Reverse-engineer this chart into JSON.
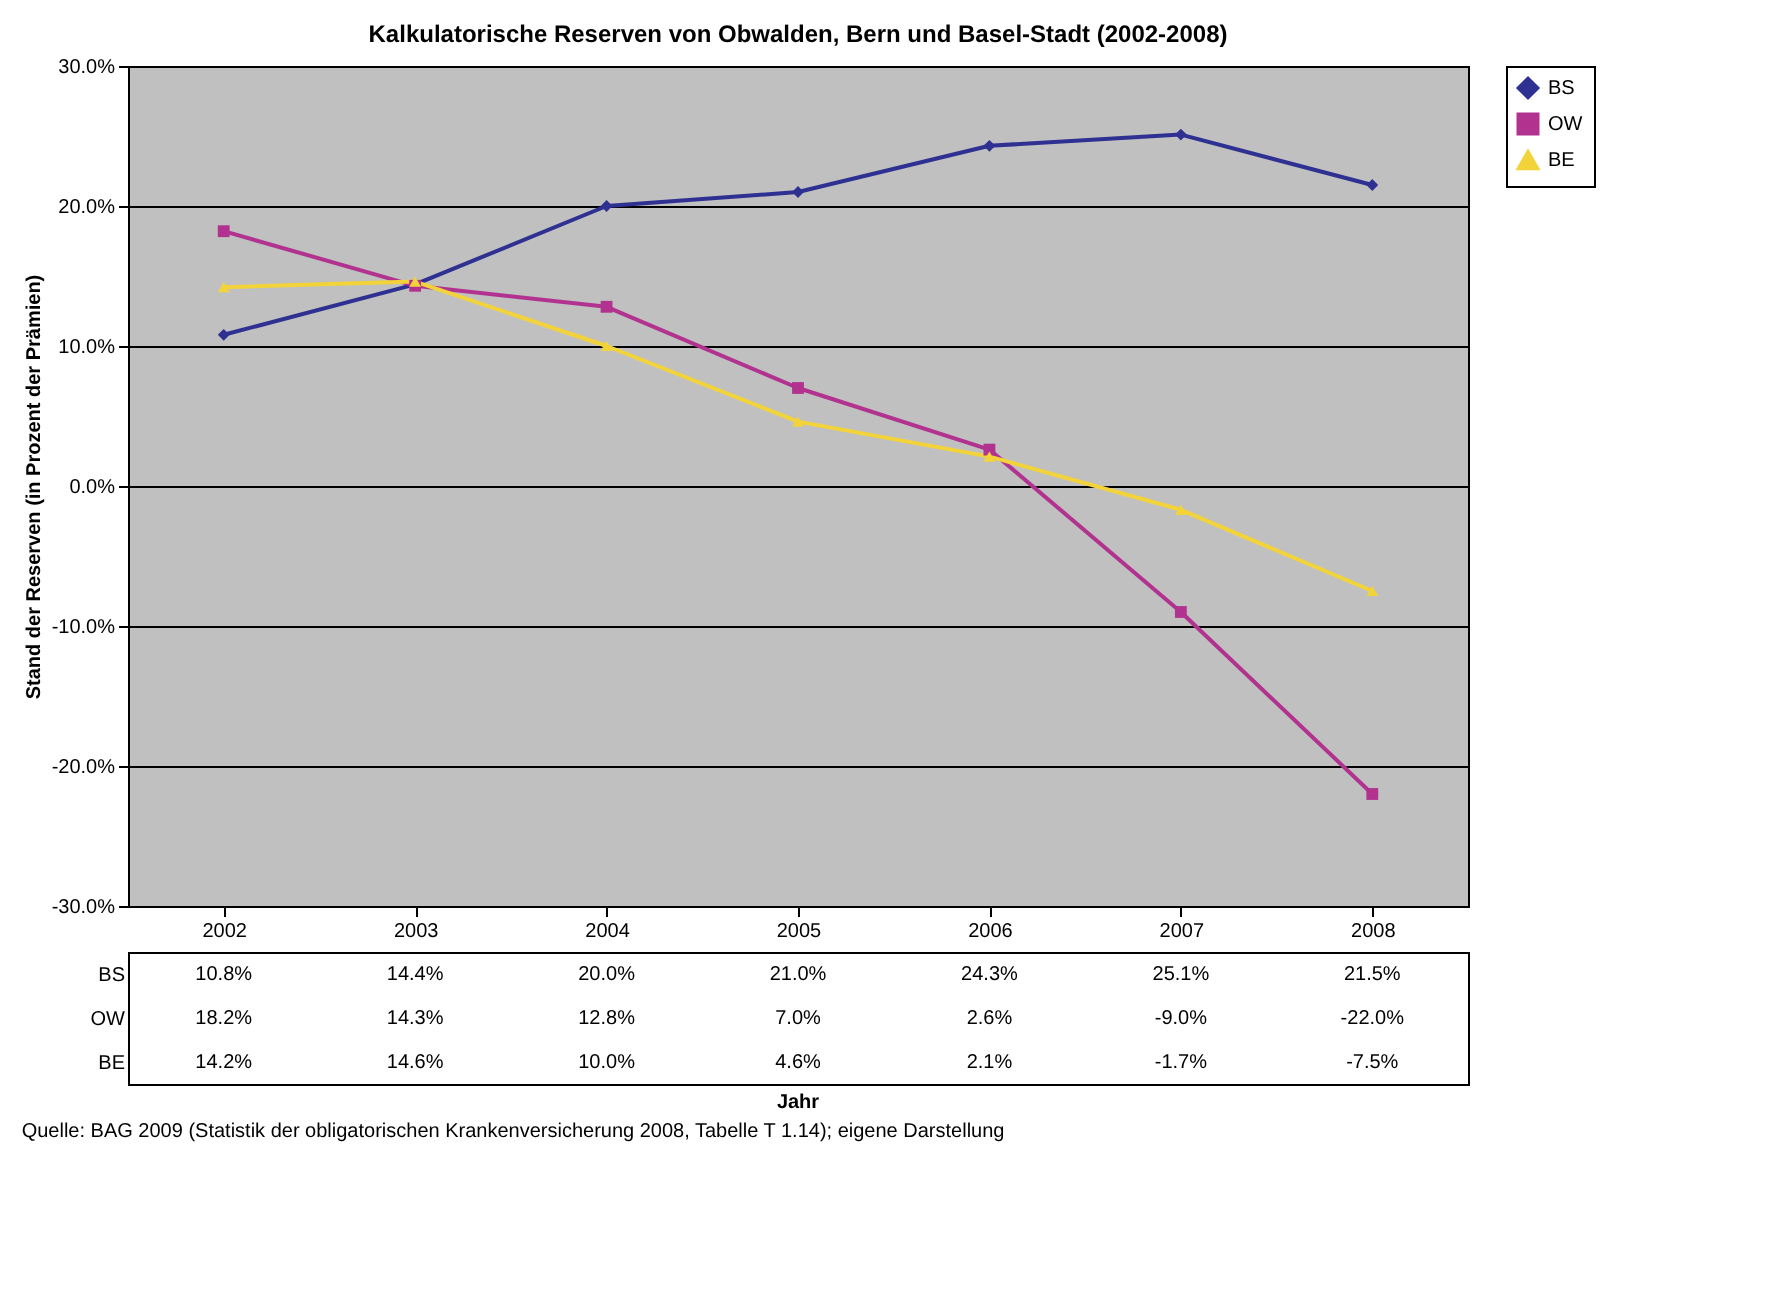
{
  "chart_data": {
    "type": "line",
    "title": "Kalkulatorische Reserven von Obwalden, Bern und Basel-Stadt (2002-2008)",
    "ylabel": "Stand der Reserven (in Prozent der Prämien)",
    "categories": [
      "2002",
      "2003",
      "2004",
      "2005",
      "2006",
      "2007",
      "2008"
    ],
    "series": [
      {
        "name": "BS",
        "color": "#2e3192",
        "marker": "diamond",
        "values": [
          10.8,
          14.4,
          20.0,
          21.0,
          24.3,
          25.1,
          21.5
        ],
        "value_labels": [
          "10.8%",
          "14.4%",
          "20.0%",
          "21.0%",
          "24.3%",
          "25.1%",
          "21.5%"
        ]
      },
      {
        "name": "OW",
        "color": "#b2338f",
        "marker": "square",
        "values": [
          18.2,
          14.3,
          12.8,
          7.0,
          2.6,
          -9.0,
          -22.0
        ],
        "value_labels": [
          "18.2%",
          "14.3%",
          "12.8%",
          "7.0%",
          "2.6%",
          "-9.0%",
          "-22.0%"
        ]
      },
      {
        "name": "BE",
        "color": "#f2d43a",
        "marker": "triangle",
        "values": [
          14.2,
          14.6,
          10.0,
          4.6,
          2.1,
          -1.7,
          -7.5
        ],
        "value_labels": [
          "14.2%",
          "14.6%",
          "10.0%",
          "4.6%",
          "2.1%",
          "-1.7%",
          "-7.5%"
        ]
      }
    ],
    "ylim": [
      -30,
      30
    ],
    "yticks": [
      {
        "value": -30,
        "label": "-30.0%"
      },
      {
        "value": -20,
        "label": "-20.0%"
      },
      {
        "value": -10,
        "label": "-10.0%"
      },
      {
        "value": 0,
        "label": "0.0%"
      },
      {
        "value": 10,
        "label": "10.0%"
      },
      {
        "value": 20,
        "label": "20.0%"
      },
      {
        "value": 30,
        "label": "30.0%"
      }
    ],
    "grid": "y",
    "legend": "right",
    "line_style": "solid",
    "annotations": [
      "Jahr",
      "Quelle: BAG 2009 (Statistik der obligatorischen Krankenversicherung 2008, Tabelle T 1.14); eigene Darstellung"
    ]
  }
}
